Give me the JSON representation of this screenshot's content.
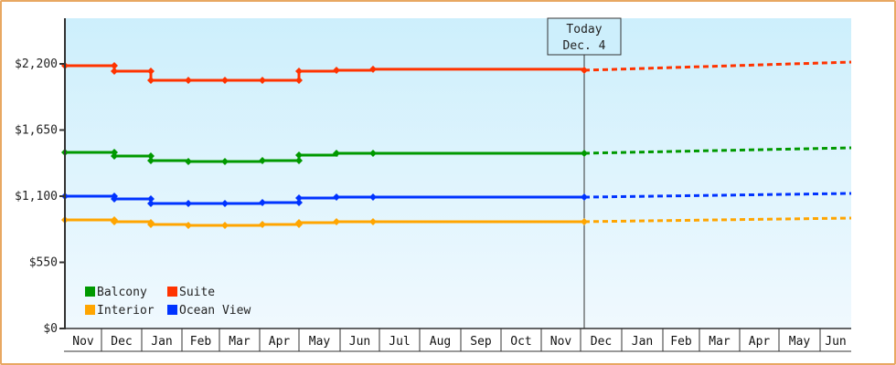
{
  "chart_data": {
    "type": "line",
    "title": "",
    "xlabel": "",
    "ylabel": "",
    "ylim": [
      0,
      2600
    ],
    "y_ticks": [
      {
        "value": 0,
        "label": "$0"
      },
      {
        "value": 550,
        "label": "$550"
      },
      {
        "value": 1100,
        "label": "$1,100"
      },
      {
        "value": 1650,
        "label": "$1,650"
      },
      {
        "value": 2200,
        "label": "$2,200"
      }
    ],
    "x_categories": [
      "Nov",
      "Dec",
      "Jan",
      "Feb",
      "Mar",
      "Apr",
      "May",
      "Jun",
      "Jul",
      "Aug",
      "Sep",
      "Oct",
      "Nov",
      "Dec",
      "Jan",
      "Feb",
      "Mar",
      "Apr",
      "May",
      "Jun"
    ],
    "grid": false,
    "legend_position": "bottom-left inside",
    "today_marker": {
      "line1": "Today",
      "line2": "Dec. 4"
    },
    "series": [
      {
        "name": "Balcony",
        "color": "#009900",
        "points": [
          [
            "Nov start",
            1464
          ],
          [
            "Dec mid",
            1464
          ],
          [
            "Dec mid",
            1434
          ],
          [
            "Jan",
            1434
          ],
          [
            "Jan",
            1396
          ],
          [
            "Feb",
            1388
          ],
          [
            "Mar",
            1388
          ],
          [
            "Apr",
            1396
          ],
          [
            "May",
            1396
          ],
          [
            "May",
            1441
          ],
          [
            "May mid",
            1457
          ],
          [
            "Jun",
            1457
          ],
          [
            "Dec 4",
            1457
          ]
        ],
        "forecast_end": 1502
      },
      {
        "name": "Suite",
        "color": "#ff3300",
        "points": [
          [
            "Nov start",
            2185
          ],
          [
            "Dec mid",
            2185
          ],
          [
            "Dec mid",
            2139
          ],
          [
            "Jan",
            2139
          ],
          [
            "Jan",
            2063
          ],
          [
            "Feb",
            2063
          ],
          [
            "Mar",
            2063
          ],
          [
            "Apr",
            2063
          ],
          [
            "May",
            2063
          ],
          [
            "May",
            2139
          ],
          [
            "May mid",
            2147
          ],
          [
            "Jun",
            2155
          ],
          [
            "Dec 4",
            2147
          ]
        ],
        "forecast_end": 2215
      },
      {
        "name": "Interior",
        "color": "#ffa500",
        "points": [
          [
            "Nov start",
            903
          ],
          [
            "Dec mid",
            903
          ],
          [
            "Dec mid",
            888
          ],
          [
            "Jan",
            880
          ],
          [
            "Jan",
            865
          ],
          [
            "Feb",
            857
          ],
          [
            "Mar",
            857
          ],
          [
            "Apr",
            865
          ],
          [
            "May",
            865
          ],
          [
            "May",
            880
          ],
          [
            "May mid",
            888
          ],
          [
            "Jun",
            888
          ],
          [
            "Dec 4",
            888
          ]
        ],
        "forecast_end": 918
      },
      {
        "name": "Ocean View",
        "color": "#0033ff",
        "points": [
          [
            "Nov start",
            1100
          ],
          [
            "Dec mid",
            1100
          ],
          [
            "Dec mid",
            1077
          ],
          [
            "Jan",
            1077
          ],
          [
            "Jan",
            1039
          ],
          [
            "Feb",
            1039
          ],
          [
            "Mar",
            1039
          ],
          [
            "Apr",
            1047
          ],
          [
            "May",
            1047
          ],
          [
            "May",
            1085
          ],
          [
            "May mid",
            1092
          ],
          [
            "Jun",
            1092
          ],
          [
            "Dec 4",
            1092
          ]
        ],
        "forecast_end": 1123
      }
    ]
  },
  "legend": {
    "items": [
      {
        "label": "Balcony",
        "color": "#009900"
      },
      {
        "label": "Suite",
        "color": "#ff3300"
      },
      {
        "label": "Interior",
        "color": "#ffa500"
      },
      {
        "label": "Ocean View",
        "color": "#0033ff"
      }
    ]
  },
  "today": {
    "line1": "Today",
    "line2": "Dec. 4"
  },
  "colors": {
    "border": "#e8a862",
    "plot_top": "#cdeffc",
    "plot_bottom": "#f0f9fe",
    "axis": "#333333"
  }
}
